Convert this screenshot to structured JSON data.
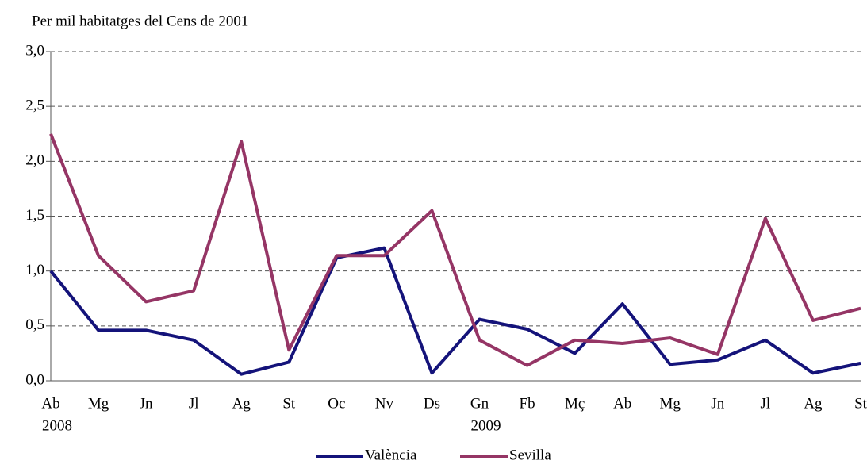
{
  "chart_data": {
    "type": "line",
    "y_axis_label": "Per mil habitatges del Cens de 2001",
    "categories": [
      "Ab",
      "Mg",
      "Jn",
      "Jl",
      "Ag",
      "St",
      "Oc",
      "Nv",
      "Ds",
      "Gn",
      "Fb",
      "Mç",
      "Ab",
      "Mg",
      "Jn",
      "Jl",
      "Ag",
      "St"
    ],
    "years": [
      "2008",
      null,
      null,
      null,
      null,
      null,
      null,
      null,
      null,
      "2009",
      null,
      null,
      null,
      null,
      null,
      null,
      null,
      null
    ],
    "series": [
      {
        "name": "València",
        "color": "#14137a",
        "values": [
          1.0,
          0.46,
          0.46,
          0.37,
          0.06,
          0.17,
          1.12,
          1.21,
          0.07,
          0.56,
          0.47,
          0.25,
          0.7,
          0.15,
          0.19,
          0.37,
          0.07,
          0.16
        ]
      },
      {
        "name": "Sevilla",
        "color": "#953565",
        "values": [
          2.25,
          1.14,
          0.72,
          0.82,
          2.18,
          0.28,
          1.14,
          1.14,
          1.55,
          0.37,
          0.14,
          0.37,
          0.34,
          0.39,
          0.24,
          1.48,
          0.55,
          0.66
        ]
      }
    ],
    "ylim": [
      0,
      3
    ],
    "yticks": [
      {
        "value": 0,
        "label": "0,0"
      },
      {
        "value": 0.5,
        "label": "0,5"
      },
      {
        "value": 1,
        "label": "1,0"
      },
      {
        "value": 1.5,
        "label": "1,5"
      },
      {
        "value": 2,
        "label": "2,0"
      },
      {
        "value": 2.5,
        "label": "2,5"
      },
      {
        "value": 3,
        "label": "3,0"
      }
    ],
    "grid": true,
    "legend": "bottom"
  }
}
